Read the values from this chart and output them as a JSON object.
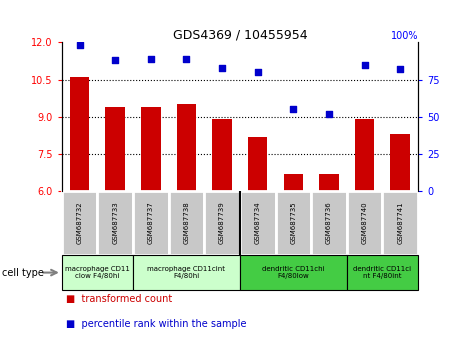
{
  "title": "GDS4369 / 10455954",
  "samples": [
    "GSM687732",
    "GSM687733",
    "GSM687737",
    "GSM687738",
    "GSM687739",
    "GSM687734",
    "GSM687735",
    "GSM687736",
    "GSM687740",
    "GSM687741"
  ],
  "bar_values": [
    10.6,
    9.4,
    9.4,
    9.5,
    8.9,
    8.2,
    6.7,
    6.7,
    8.9,
    8.3
  ],
  "scatter_values": [
    98,
    88,
    89,
    89,
    83,
    80,
    55,
    52,
    85,
    82
  ],
  "ylim_left": [
    6,
    12
  ],
  "ylim_right": [
    0,
    100
  ],
  "yticks_left": [
    6,
    7.5,
    9,
    10.5,
    12
  ],
  "yticks_right": [
    0,
    25,
    50,
    75,
    100
  ],
  "bar_color": "#cc0000",
  "scatter_color": "#0000cc",
  "cell_type_groups": [
    {
      "label": "macrophage CD11\nclow F4/80hi",
      "start": 0,
      "end": 2,
      "color": "#ccffcc"
    },
    {
      "label": "macrophage CD11cint\nF4/80hi",
      "start": 2,
      "end": 5,
      "color": "#ccffcc"
    },
    {
      "label": "dendritic CD11chi\nF4/80low",
      "start": 5,
      "end": 8,
      "color": "#44cc44"
    },
    {
      "label": "dendritic CD11ci\nnt F4/80int",
      "start": 8,
      "end": 10,
      "color": "#44cc44"
    }
  ],
  "sample_bg_color": "#c8c8c8",
  "sample_border_color": "#ffffff",
  "legend_labels": [
    "transformed count",
    "percentile rank within the sample"
  ],
  "cell_type_label": "cell type",
  "percent_label": "100%"
}
